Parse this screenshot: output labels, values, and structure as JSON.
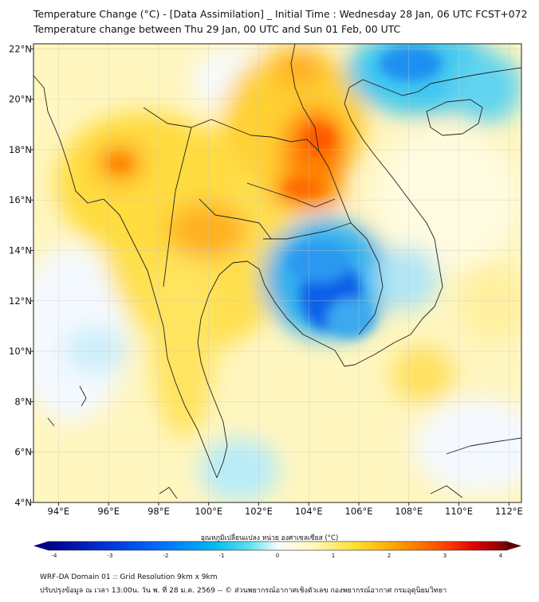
{
  "title_line1": "Temperature Change (°C) - [Data Assimilation] _ Initial Time : Wednesday 28 Jan, 06 UTC FCST+072",
  "title_line2": "Temperature change between Thu 29 Jan, 00 UTC and Sun 01 Feb, 00 UTC",
  "map": {
    "lon_range": [
      93,
      112.5
    ],
    "lat_range": [
      4,
      22.2
    ],
    "lon_ticks": [
      "94°E",
      "96°E",
      "98°E",
      "100°E",
      "102°E",
      "104°E",
      "106°E",
      "108°E",
      "110°E",
      "112°E"
    ],
    "lat_ticks": [
      "4°N",
      "6°N",
      "8°N",
      "10°N",
      "12°N",
      "14°N",
      "16°N",
      "18°N",
      "20°N",
      "22°N"
    ],
    "gridlines": true,
    "field": "temperature change",
    "warm_regions": [
      "Northern Thailand",
      "Northeast Thailand",
      "Laos",
      "Central Thailand",
      "Myanmar highlands"
    ],
    "cold_regions": [
      "Cambodia",
      "Gulf of Tonkin",
      "Southern Vietnam coast"
    ]
  },
  "colorbar": {
    "title": "อุณหภูมิเปลี่ยนแปลง หน่วย องศาเซลเซียส (°C)",
    "min": -4,
    "max": 4,
    "ticks": [
      "-4",
      "-3",
      "-2",
      "-1",
      "0",
      "1",
      "2",
      "3",
      "4"
    ],
    "colors": [
      "#00008b",
      "#0030d0",
      "#0070ff",
      "#00b8f0",
      "#60e0f0",
      "#f6fbff",
      "#fff9c8",
      "#ffe030",
      "#ffa000",
      "#ff4800",
      "#e00000",
      "#7a0000"
    ]
  },
  "footer_line1": "WRF-DA Domain 01 :: Grid Resolution 9km x 9km",
  "footer_line2": "ปรับปรุงข้อมูล ณ เวลา 13:00น. วัน พ. ที่ 28 ม.ค. 2569 -- © ส่วนพยากรณ์อากาศเชิงตัวเลข กองพยากรณ์อากาศ กรมอุตุนิยมวิทยา"
}
